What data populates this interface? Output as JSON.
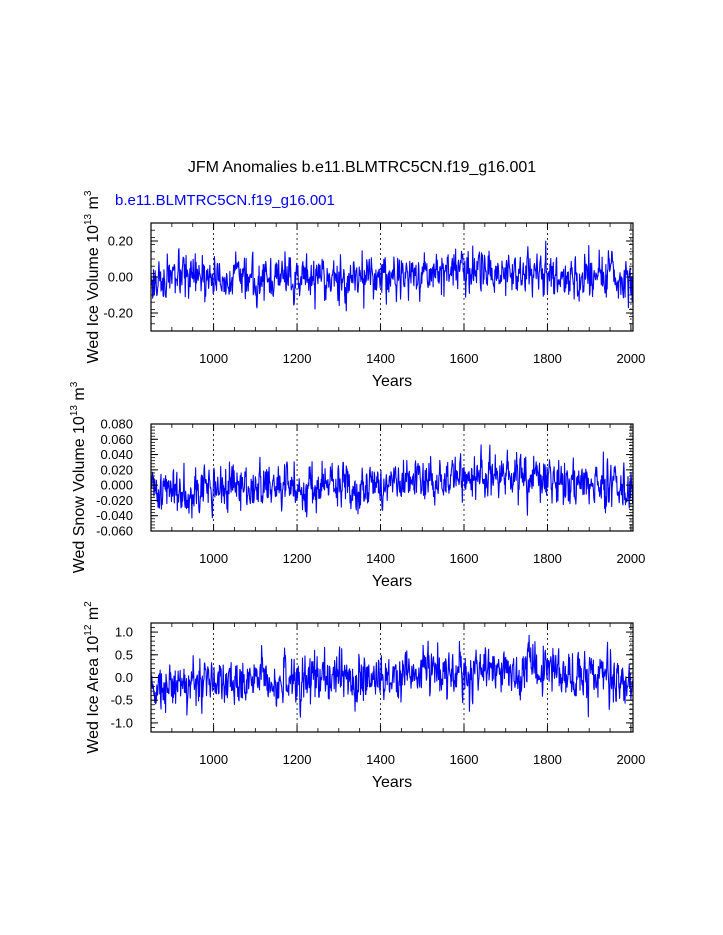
{
  "title": "JFM Anomalies b.e11.BLMTRC5CN.f19_g16.001",
  "series_label": "b.e11.BLMTRC5CN.f19_g16.001",
  "colors": {
    "series": "#0000ff",
    "axis": "#000000",
    "text": "#000000",
    "grid": "#000000"
  },
  "chart_data": [
    {
      "type": "line",
      "panel": "ice-volume",
      "title": "JFM Anomalies b.e11.BLMTRC5CN.f19_g16.001",
      "legend": "b.e11.BLMTRC5CN.f19_g16.001",
      "ylabel_main": "Wed Ice Volume 10",
      "ylabel_exp": "13",
      "ylabel_unit": " m",
      "ylabel_unit_exp": "3",
      "xlabel": "Years",
      "xlim": [
        850,
        2005
      ],
      "ylim": [
        -0.3,
        0.3
      ],
      "xticks": [
        1000,
        1200,
        1400,
        1600,
        1800,
        2000
      ],
      "xtick_labels": [
        "1000",
        "1200",
        "1400",
        "1600",
        "1800",
        "2000"
      ],
      "yticks": [
        0.2,
        0.0,
        -0.2
      ],
      "ytick_labels": [
        "0.20",
        "0.00",
        "-0.20"
      ],
      "vgrid_dashed": [
        1000,
        1200,
        1400,
        1600,
        1800,
        2000
      ],
      "sd": 0.055,
      "seed": 17,
      "trend_years": [
        850,
        1000,
        1200,
        1400,
        1500,
        1600,
        1700,
        1800,
        1900,
        1950,
        2005
      ],
      "trend_values": [
        -0.02,
        -0.01,
        -0.01,
        0.0,
        0.02,
        0.05,
        0.03,
        0.02,
        0.0,
        0.01,
        -0.04
      ],
      "series": [
        {
          "name": "b.e11.BLMTRC5CN.f19_g16.001",
          "x_start": 850,
          "x_end": 2005
        }
      ]
    },
    {
      "type": "line",
      "panel": "snow-volume",
      "ylabel_main": "Wed Snow Volume 10",
      "ylabel_exp": "13",
      "ylabel_unit": " m",
      "ylabel_unit_exp": "3",
      "xlabel": "Years",
      "xlim": [
        850,
        2005
      ],
      "ylim": [
        -0.06,
        0.08
      ],
      "xticks": [
        1000,
        1200,
        1400,
        1600,
        1800,
        2000
      ],
      "xtick_labels": [
        "1000",
        "1200",
        "1400",
        "1600",
        "1800",
        "2000"
      ],
      "yticks": [
        0.08,
        0.06,
        0.04,
        0.02,
        0.0,
        -0.02,
        -0.04,
        -0.06
      ],
      "ytick_labels": [
        "0.080",
        "0.060",
        "0.040",
        "0.020",
        "0.000",
        "-0.020",
        "-0.040",
        "-0.060"
      ],
      "vgrid_dashed": [
        1000,
        1200,
        1400,
        1600,
        1800,
        2000
      ],
      "sd": 0.014,
      "seed": 41,
      "trend_years": [
        850,
        1000,
        1200,
        1400,
        1500,
        1600,
        1700,
        1800,
        1900,
        1950,
        2005
      ],
      "trend_values": [
        -0.006,
        -0.004,
        -0.003,
        0.0,
        0.004,
        0.012,
        0.01,
        0.006,
        0.002,
        0.0,
        -0.01
      ],
      "series": [
        {
          "name": "b.e11.BLMTRC5CN.f19_g16.001",
          "x_start": 850,
          "x_end": 2005
        }
      ]
    },
    {
      "type": "line",
      "panel": "ice-area",
      "ylabel_main": "Wed Ice Area 10",
      "ylabel_exp": "12",
      "ylabel_unit": " m",
      "ylabel_unit_exp": "2",
      "xlabel": "Years",
      "xlim": [
        850,
        2005
      ],
      "ylim": [
        -1.2,
        1.2
      ],
      "xticks": [
        1000,
        1200,
        1400,
        1600,
        1800,
        2000
      ],
      "xtick_labels": [
        "1000",
        "1200",
        "1400",
        "1600",
        "1800",
        "2000"
      ],
      "yticks": [
        1.0,
        0.5,
        0.0,
        -0.5,
        -1.0
      ],
      "ytick_labels": [
        "1.0",
        "0.5",
        "0.0",
        "-0.5",
        "-1.0"
      ],
      "vgrid_dashed": [
        1000,
        1200,
        1400,
        1600,
        1800,
        2000
      ],
      "sd": 0.25,
      "seed": 73,
      "trend_years": [
        850,
        1000,
        1200,
        1400,
        1500,
        1600,
        1700,
        1800,
        1900,
        1950,
        2005
      ],
      "trend_values": [
        -0.15,
        -0.1,
        -0.05,
        0.05,
        0.1,
        0.15,
        0.1,
        0.15,
        0.05,
        0.0,
        -0.25
      ],
      "series": [
        {
          "name": "b.e11.BLMTRC5CN.f19_g16.001",
          "x_start": 850,
          "x_end": 2005
        }
      ]
    }
  ]
}
